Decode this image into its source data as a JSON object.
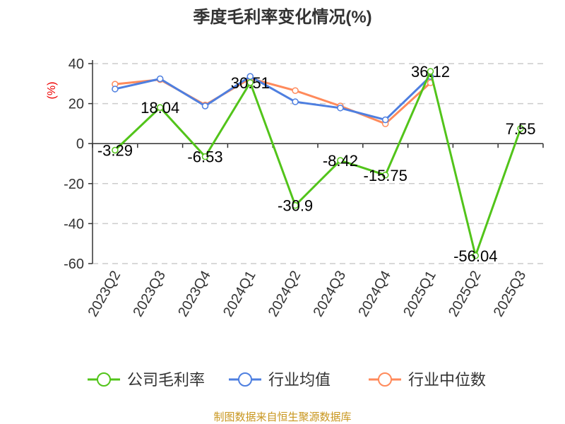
{
  "chart_data": {
    "type": "line",
    "title": "季度毛利率变化情况(%)",
    "ylabel": "(%)",
    "xlabel": "",
    "ylim": [
      -60,
      40
    ],
    "yticks": [
      40,
      20,
      0,
      -20,
      -40,
      -60
    ],
    "grid": true,
    "legend_position": "bottom",
    "categories": [
      "2023Q2",
      "2023Q3",
      "2023Q4",
      "2024Q1",
      "2024Q2",
      "2024Q3",
      "2024Q4",
      "2025Q1",
      "2025Q2",
      "2025Q3"
    ],
    "series": [
      {
        "name": "公司毛利率",
        "color": "#52c41a",
        "values": [
          -3.29,
          18.04,
          -6.53,
          30.51,
          -30.9,
          -8.42,
          -15.75,
          36.12,
          -56.04,
          7.55
        ],
        "labels": [
          "-3.29",
          "18.04",
          "-6.53",
          "30.51",
          "-30.9",
          "-8.42",
          "-15.75",
          "36.12",
          "-56.04",
          "7.55"
        ]
      },
      {
        "name": "行业均值",
        "color": "#4e7fe0",
        "values": [
          27.3,
          32.4,
          18.8,
          33.6,
          20.9,
          17.8,
          11.9,
          33.6,
          null,
          null
        ]
      },
      {
        "name": "行业中位数",
        "color": "#ff8a5b",
        "values": [
          29.7,
          32.0,
          19.3,
          32.6,
          26.5,
          18.8,
          9.9,
          30.4,
          null,
          null
        ]
      }
    ],
    "source": "制图数据来自恒生聚源数据库"
  }
}
